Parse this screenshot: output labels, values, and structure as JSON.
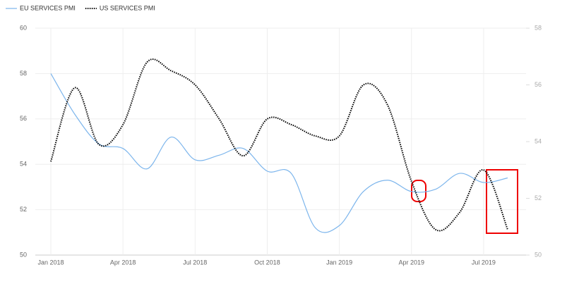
{
  "chart_data": {
    "type": "line",
    "categories": [
      "Jan 2018",
      null,
      null,
      "Apr 2018",
      null,
      null,
      "Jul 2018",
      null,
      null,
      "Oct 2018",
      null,
      null,
      "Jan 2019",
      null,
      null,
      "Apr 2019",
      null,
      null,
      "Jul 2019",
      null
    ],
    "series": [
      {
        "name": "EU SERVICES PMI",
        "color": "#7cb5ec",
        "dash": false,
        "axis": "y",
        "values": [
          58.0,
          56.2,
          54.9,
          54.7,
          53.8,
          55.2,
          54.2,
          54.4,
          54.7,
          53.7,
          53.6,
          51.2,
          51.3,
          52.8,
          53.3,
          52.8,
          52.9,
          53.6,
          53.2,
          53.4
        ]
      },
      {
        "name": "US SERVICES PMI",
        "color": "#000000",
        "dash": true,
        "axis": "y2",
        "values": [
          53.3,
          55.9,
          53.9,
          54.6,
          56.8,
          56.5,
          56.0,
          54.8,
          53.5,
          54.8,
          54.6,
          54.2,
          54.2,
          56.0,
          55.3,
          52.6,
          50.9,
          51.5,
          53.0,
          50.9
        ]
      }
    ],
    "ylim": [
      50,
      60
    ],
    "yticks": [
      50,
      52,
      54,
      56,
      58,
      60
    ],
    "y2lim": [
      50,
      58
    ],
    "y2ticks": [
      50,
      52,
      54,
      56,
      58
    ],
    "grid": true,
    "legend": "top-left"
  }
}
